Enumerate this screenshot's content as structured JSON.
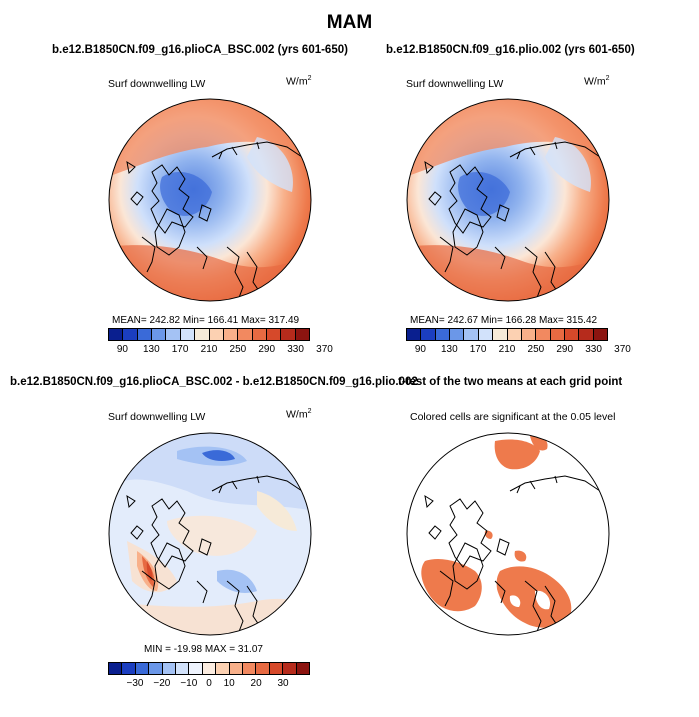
{
  "title": "MAM",
  "panels": [
    {
      "id": "top-left",
      "header": "b.e12.B1850CN.f09_g16.plioCA_BSC.002 (yrs 601-650)",
      "variable": "Surf downwelling LW",
      "units_base": "W/m",
      "units_sup": "2",
      "stats_text": "MEAN=  242.82    Min=  166.41    Max=  317.49",
      "colorbar_labels": [
        "90",
        "130",
        "170",
        "210",
        "250",
        "290",
        "330",
        "370"
      ]
    },
    {
      "id": "top-right",
      "header": "b.e12.B1850CN.f09_g16.plio.002 (yrs 601-650)",
      "variable": "Surf downwelling LW",
      "units_base": "W/m",
      "units_sup": "2",
      "stats_text": "MEAN=  242.67    Min=  166.28    Max=  315.42",
      "colorbar_labels": [
        "90",
        "130",
        "170",
        "210",
        "250",
        "290",
        "330",
        "370"
      ]
    },
    {
      "id": "bottom-left",
      "header": "b.e12.B1850CN.f09_g16.plioCA_BSC.002 - b.e12.B1850CN.f09_g16.plio.002",
      "variable": "Surf downwelling LW",
      "units_base": "W/m",
      "units_sup": "2",
      "stats_text": "MIN = -19.98  MAX =  31.07",
      "colorbar_labels": [
        "−30",
        "−20",
        "−10",
        "0",
        "10",
        "20",
        "30"
      ]
    },
    {
      "id": "bottom-right",
      "header": "t-test of the two means at each grid point",
      "note": "Colored cells are significant at the 0.05 level"
    }
  ],
  "chart_data": [
    {
      "type": "heatmap",
      "title": "b.e12.B1850CN.f09_g16.plioCA_BSC.002 (yrs 601-650)",
      "variable": "Surf downwelling LW",
      "units": "W/m2",
      "projection": "polar stereographic (north)",
      "mean": 242.82,
      "min": 166.41,
      "max": 317.49,
      "colorbar_levels": [
        90,
        130,
        170,
        210,
        250,
        290,
        330,
        370
      ]
    },
    {
      "type": "heatmap",
      "title": "b.e12.B1850CN.f09_g16.plio.002 (yrs 601-650)",
      "variable": "Surf downwelling LW",
      "units": "W/m2",
      "projection": "polar stereographic (north)",
      "mean": 242.67,
      "min": 166.28,
      "max": 315.42,
      "colorbar_levels": [
        90,
        130,
        170,
        210,
        250,
        290,
        330,
        370
      ]
    },
    {
      "type": "heatmap",
      "title": "b.e12.B1850CN.f09_g16.plioCA_BSC.002 - b.e12.B1850CN.f09_g16.plio.002",
      "variable": "Surf downwelling LW",
      "units": "W/m2",
      "projection": "polar stereographic (north)",
      "min": -19.98,
      "max": 31.07,
      "colorbar_levels": [
        -30,
        -20,
        -10,
        0,
        10,
        20,
        30
      ]
    },
    {
      "type": "heatmap",
      "title": "t-test of the two means at each grid point",
      "note": "Colored cells are significant at the 0.05 level",
      "significance_level": 0.05
    }
  ],
  "colors": {
    "abs_scale": [
      "#0a1f8f",
      "#1b3ec0",
      "#3a6ad8",
      "#6b97e8",
      "#a4c2f4",
      "#d2e2fb",
      "#f6ead8",
      "#fcd1b2",
      "#f8b08a",
      "#f28960",
      "#e76a42",
      "#d6492a",
      "#b62b1c",
      "#8c1410"
    ],
    "diff_scale": [
      "#0a1f8f",
      "#1b3ec0",
      "#3a6ad8",
      "#6b97e8",
      "#a4c2f4",
      "#d2e2fb",
      "#eef3fd",
      "#fbece0",
      "#fcd1b2",
      "#f8b08a",
      "#f28960",
      "#e76a42",
      "#d6492a",
      "#b62b1c",
      "#8c1410"
    ],
    "significant": "#ee7a4c"
  }
}
